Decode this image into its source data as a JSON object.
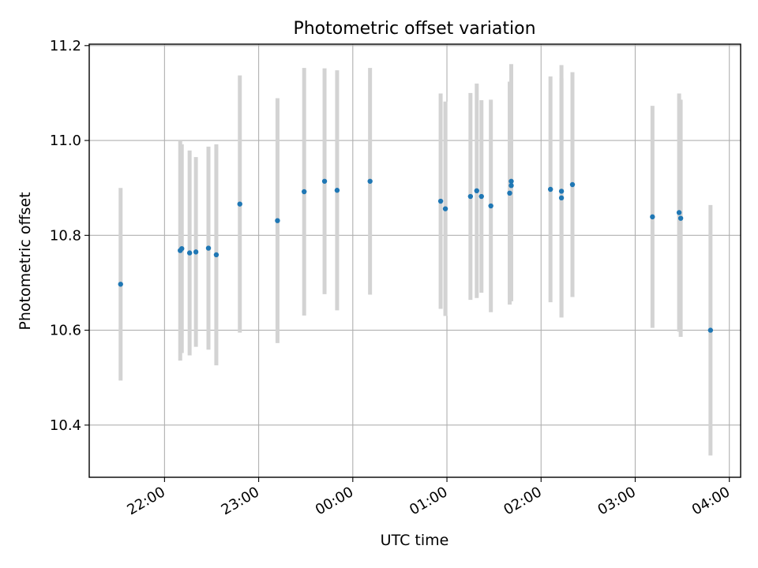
{
  "chart_data": {
    "type": "scatter",
    "title": "Photometric offset variation",
    "xlabel": "UTC time",
    "ylabel": "Photometric offset",
    "x_unit": "hours",
    "xlim": [
      21.2,
      28.12
    ],
    "ylim": [
      10.29,
      11.203
    ],
    "x_ticks": [
      {
        "value": 22,
        "label": "22:00"
      },
      {
        "value": 23,
        "label": "23:00"
      },
      {
        "value": 24,
        "label": "00:00"
      },
      {
        "value": 25,
        "label": "01:00"
      },
      {
        "value": 26,
        "label": "02:00"
      },
      {
        "value": 27,
        "label": "03:00"
      },
      {
        "value": 28,
        "label": "04:00"
      }
    ],
    "y_ticks": [
      {
        "value": 10.4,
        "label": "10.4"
      },
      {
        "value": 10.6,
        "label": "10.6"
      },
      {
        "value": 10.8,
        "label": "10.8"
      },
      {
        "value": 11.0,
        "label": "11.0"
      },
      {
        "value": 11.2,
        "label": "11.2"
      }
    ],
    "grid": true,
    "point_color": "#1f77b4",
    "errorbar_color": "#d3d3d3",
    "points": [
      {
        "x": "21:32",
        "y": 10.697,
        "err": 0.203
      },
      {
        "x": "22:10",
        "y": 10.768,
        "err": 0.232
      },
      {
        "x": "22:11",
        "y": 10.772,
        "err": 0.22
      },
      {
        "x": "22:16",
        "y": 10.763,
        "err": 0.216
      },
      {
        "x": "22:20",
        "y": 10.765,
        "err": 0.2
      },
      {
        "x": "22:28",
        "y": 10.773,
        "err": 0.214
      },
      {
        "x": "22:33",
        "y": 10.759,
        "err": 0.233
      },
      {
        "x": "22:48",
        "y": 10.866,
        "err": 0.271
      },
      {
        "x": "23:12",
        "y": 10.831,
        "err": 0.258
      },
      {
        "x": "23:29",
        "y": 10.892,
        "err": 0.261
      },
      {
        "x": "23:42",
        "y": 10.914,
        "err": 0.238
      },
      {
        "x": "23:50",
        "y": 10.895,
        "err": 0.253
      },
      {
        "x": "00:11",
        "y": 10.914,
        "err": 0.239
      },
      {
        "x": "00:56",
        "y": 10.872,
        "err": 0.227
      },
      {
        "x": "00:59",
        "y": 10.856,
        "err": 0.226
      },
      {
        "x": "01:15",
        "y": 10.882,
        "err": 0.218
      },
      {
        "x": "01:19",
        "y": 10.894,
        "err": 0.226
      },
      {
        "x": "01:22",
        "y": 10.882,
        "err": 0.203
      },
      {
        "x": "01:28",
        "y": 10.862,
        "err": 0.224
      },
      {
        "x": "01:40",
        "y": 10.889,
        "err": 0.235
      },
      {
        "x": "01:41",
        "y": 10.905,
        "err": 0.244
      },
      {
        "x": "01:41",
        "y": 10.914,
        "err": 0.247
      },
      {
        "x": "02:06",
        "y": 10.897,
        "err": 0.238
      },
      {
        "x": "02:13",
        "y": 10.893,
        "err": 0.266
      },
      {
        "x": "02:13",
        "y": 10.879,
        "err": 0.252
      },
      {
        "x": "02:20",
        "y": 10.907,
        "err": 0.237
      },
      {
        "x": "03:11",
        "y": 10.839,
        "err": 0.234
      },
      {
        "x": "03:28",
        "y": 10.848,
        "err": 0.251
      },
      {
        "x": "03:29",
        "y": 10.836,
        "err": 0.25
      },
      {
        "x": "03:48",
        "y": 10.6,
        "err": 0.264
      }
    ]
  }
}
